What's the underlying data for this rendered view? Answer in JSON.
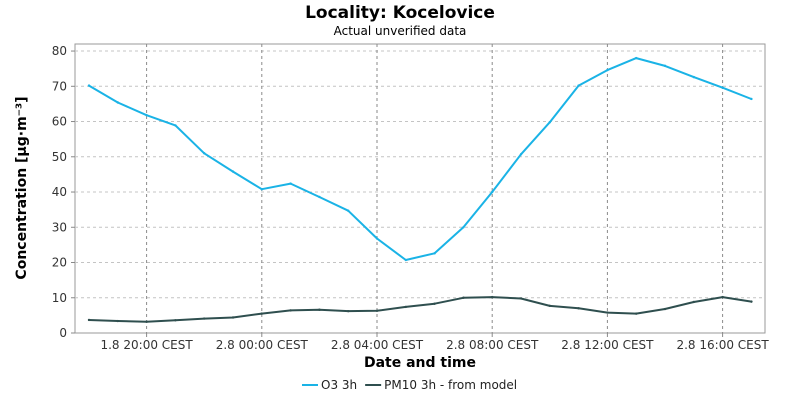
{
  "chart_data": {
    "type": "line",
    "title": "Locality: Kocelovice",
    "subtitle": "Actual unverified data",
    "xlabel": "Date and time",
    "ylabel": "Concentration [µg·m⁻³]",
    "ylim": [
      0,
      82
    ],
    "yticks": [
      0,
      10,
      20,
      30,
      40,
      50,
      60,
      70,
      80
    ],
    "grid": true,
    "legend_position": "bottom-center",
    "x": [
      "1.8 18:00",
      "1.8 19:00",
      "1.8 20:00",
      "1.8 21:00",
      "1.8 22:00",
      "1.8 23:00",
      "2.8 00:00",
      "2.8 01:00",
      "2.8 02:00",
      "2.8 03:00",
      "2.8 04:00",
      "2.8 05:00",
      "2.8 06:00",
      "2.8 07:00",
      "2.8 08:00",
      "2.8 09:00",
      "2.8 10:00",
      "2.8 11:00",
      "2.8 12:00",
      "2.8 13:00",
      "2.8 14:00",
      "2.8 15:00",
      "2.8 16:00",
      "2.8 17:00"
    ],
    "xticks": [
      {
        "at": "1.8 20:00",
        "label": "1.8 20:00 CEST"
      },
      {
        "at": "2.8 00:00",
        "label": "2.8 00:00 CEST"
      },
      {
        "at": "2.8 04:00",
        "label": "2.8 04:00 CEST"
      },
      {
        "at": "2.8 08:00",
        "label": "2.8 08:00 CEST"
      },
      {
        "at": "2.8 12:00",
        "label": "2.8 12:00 CEST"
      },
      {
        "at": "2.8 16:00",
        "label": "2.8 16:00 CEST"
      }
    ],
    "series": [
      {
        "name": "O3 3h",
        "color": "#1ab3e6",
        "values": [
          70.2,
          65.4,
          61.8,
          58.9,
          51.0,
          45.8,
          40.8,
          42.4,
          38.6,
          34.7,
          26.8,
          20.7,
          22.6,
          30.0,
          40.0,
          50.7,
          59.8,
          70.2,
          74.6,
          78.0,
          75.8,
          72.6,
          69.6,
          66.4
        ]
      },
      {
        "name": "PM10 3h - from model",
        "color": "#2f4f4f",
        "values": [
          3.7,
          3.4,
          3.2,
          3.6,
          4.1,
          4.4,
          5.5,
          6.4,
          6.6,
          6.2,
          6.3,
          7.4,
          8.3,
          10.0,
          10.2,
          9.8,
          7.7,
          7.0,
          5.8,
          5.5,
          6.8,
          8.8,
          10.2,
          8.9
        ]
      }
    ]
  }
}
